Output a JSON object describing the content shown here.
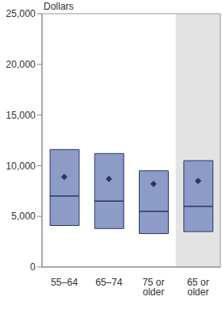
{
  "chart_data": {
    "type": "box",
    "ylabel": "Dollars",
    "categories": [
      "55–64",
      "65–74",
      "75 or older",
      "65 or older"
    ],
    "q1": [
      4100,
      3800,
      3300,
      3500
    ],
    "median": [
      7000,
      6500,
      5500,
      6000
    ],
    "q3": [
      11600,
      11200,
      9500,
      10500
    ],
    "mean": [
      8900,
      8700,
      8200,
      8500
    ],
    "color": "#8d9cc6",
    "marker": "diamond",
    "ylim": [
      0,
      25000
    ],
    "yticks": [
      {
        "value": 0,
        "label": "0"
      },
      {
        "value": 5000,
        "label": "5,000"
      },
      {
        "value": 10000,
        "label": "10,000"
      },
      {
        "value": 15000,
        "label": "15,000"
      },
      {
        "value": 20000,
        "label": "20,000"
      },
      {
        "value": 25000,
        "label": "25,000"
      }
    ],
    "grid": false
  }
}
